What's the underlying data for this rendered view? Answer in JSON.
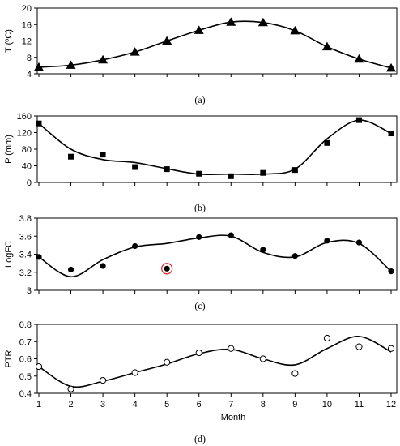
{
  "chart_data": [
    {
      "type": "line",
      "panel_label": "(a)",
      "ylabel": "T (ºC)",
      "x": [
        1,
        2,
        3,
        4,
        5,
        6,
        7,
        8,
        9,
        10,
        11,
        12
      ],
      "y": [
        5.6,
        6.1,
        7.4,
        9.3,
        12.0,
        14.6,
        16.6,
        16.5,
        14.5,
        10.6,
        7.6,
        5.4
      ],
      "marker": "triangle",
      "xlim": [
        1,
        12
      ],
      "ylim": [
        4,
        20
      ],
      "yticks": [
        4,
        8,
        12,
        16,
        20
      ],
      "show_x_tick_labels": false
    },
    {
      "type": "scatter",
      "panel_label": "(b)",
      "ylabel": "P (mm)",
      "x": [
        1,
        2,
        3,
        4,
        5,
        6,
        7,
        8,
        9,
        10,
        11,
        12
      ],
      "y": [
        142,
        62,
        67,
        37,
        32,
        21,
        15,
        23,
        30,
        95,
        150,
        118
      ],
      "fit": [
        142,
        80,
        55,
        48,
        33,
        20,
        20,
        20,
        32,
        105,
        150,
        118
      ],
      "marker": "square",
      "xlim": [
        1,
        12
      ],
      "ylim": [
        0,
        160
      ],
      "yticks": [
        0,
        40,
        80,
        120,
        160
      ],
      "show_x_tick_labels": false
    },
    {
      "type": "scatter",
      "panel_label": "(c)",
      "ylabel": "LogFC",
      "x": [
        1,
        2,
        3,
        4,
        5,
        6,
        7,
        8,
        9,
        10,
        11,
        12
      ],
      "y": [
        3.37,
        3.23,
        3.27,
        3.49,
        3.24,
        3.59,
        3.61,
        3.45,
        3.38,
        3.55,
        3.53,
        3.21
      ],
      "fit": [
        3.37,
        3.15,
        3.34,
        3.48,
        3.52,
        3.58,
        3.6,
        3.42,
        3.37,
        3.53,
        3.52,
        3.21
      ],
      "marker": "filled-circle",
      "highlight_month": 5,
      "highlight_color": "#e03030",
      "xlim": [
        1,
        12
      ],
      "ylim": [
        3.0,
        3.8
      ],
      "yticks": [
        "3",
        "3.2",
        "3.4",
        "3.6",
        "3.8"
      ],
      "show_x_tick_labels": false
    },
    {
      "type": "scatter",
      "panel_label": "(d)",
      "ylabel": "PTR",
      "xlabel": "Month",
      "x": [
        1,
        2,
        3,
        4,
        5,
        6,
        7,
        8,
        9,
        10,
        11,
        12
      ],
      "y": [
        0.555,
        0.425,
        0.475,
        0.52,
        0.58,
        0.635,
        0.66,
        0.6,
        0.515,
        0.72,
        0.67,
        0.66
      ],
      "fit": [
        0.555,
        0.44,
        0.47,
        0.52,
        0.57,
        0.63,
        0.655,
        0.6,
        0.565,
        0.66,
        0.73,
        0.64
      ],
      "marker": "open-circle",
      "xlim": [
        1,
        12
      ],
      "ylim": [
        0.4,
        0.8
      ],
      "yticks": [
        "0.4",
        "0.5",
        "0.6",
        "0.7",
        "0.8"
      ],
      "xticks": [
        "1",
        "2",
        "3",
        "4",
        "5",
        "6",
        "7",
        "8",
        "9",
        "10",
        "11",
        "12"
      ],
      "show_x_tick_labels": true
    }
  ]
}
